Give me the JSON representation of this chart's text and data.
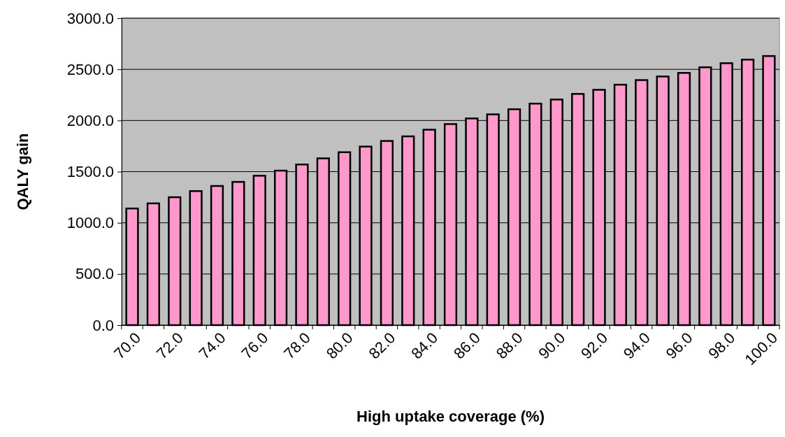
{
  "chart_data": {
    "type": "bar",
    "xlabel": "High uptake coverage (%)",
    "ylabel": "QALY gain",
    "categories": [
      "70.0",
      null,
      "72.0",
      null,
      "74.0",
      null,
      "76.0",
      null,
      "78.0",
      null,
      "80.0",
      null,
      "82.0",
      null,
      "84.0",
      null,
      "86.0",
      null,
      "88.0",
      null,
      "90.0",
      null,
      "92.0",
      null,
      "94.0",
      null,
      "96.0",
      null,
      "98.0",
      null,
      "100.0"
    ],
    "values": [
      1140,
      1190,
      1250,
      1310,
      1360,
      1400,
      1460,
      1510,
      1570,
      1630,
      1690,
      1745,
      1800,
      1845,
      1910,
      1965,
      2020,
      2060,
      2110,
      2165,
      2205,
      2260,
      2300,
      2350,
      2395,
      2430,
      2465,
      2520,
      2560,
      2595,
      2630
    ],
    "color": "#ff99cc",
    "ylim": [
      0,
      3000
    ],
    "yticks": [
      {
        "value": 0,
        "label": "0.0"
      },
      {
        "value": 500,
        "label": "500.0"
      },
      {
        "value": 1000,
        "label": "1000.0"
      },
      {
        "value": 1500,
        "label": "1500.0"
      },
      {
        "value": 2000,
        "label": "2000.0"
      },
      {
        "value": 2500,
        "label": "2500.0"
      },
      {
        "value": 3000,
        "label": "3000.0"
      }
    ],
    "grid": "y"
  }
}
